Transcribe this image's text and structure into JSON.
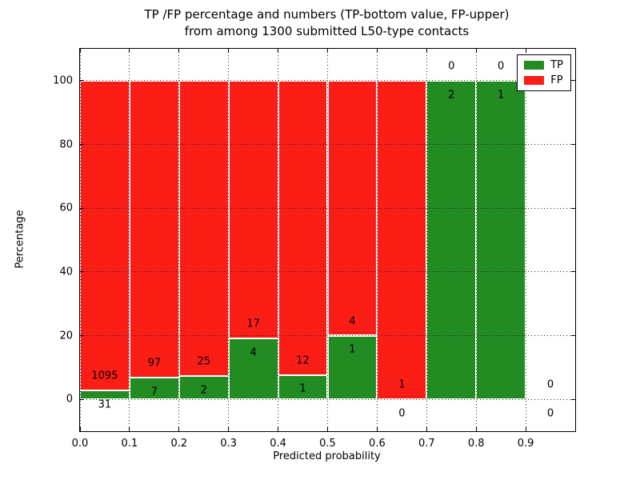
{
  "figure": {
    "title_line1": "TP /FP percentage and numbers (TP-bottom value, FP-upper)",
    "title_line2": "from among 1300 submitted L50-type contacts",
    "xlabel": "Predicted probability",
    "ylabel": "Percentage"
  },
  "legend": {
    "items": [
      {
        "label": "TP",
        "color": "#228b22"
      },
      {
        "label": "FP",
        "color": "#fb1e17"
      }
    ]
  },
  "chart_data": {
    "type": "bar",
    "stacked": true,
    "title": "TP /FP percentage and numbers (TP-bottom value, FP-upper) from among 1300 submitted L50-type contacts",
    "xlabel": "Predicted probability",
    "ylabel": "Percentage",
    "xlim": [
      0.0,
      1.0
    ],
    "ylim": [
      -10,
      110
    ],
    "xtick_values": [
      0.0,
      0.1,
      0.2,
      0.3,
      0.4,
      0.5,
      0.6,
      0.7,
      0.8,
      0.9
    ],
    "xtick_labels": [
      "0.0",
      "0.1",
      "0.2",
      "0.3",
      "0.4",
      "0.5",
      "0.6",
      "0.7",
      "0.8",
      "0.9"
    ],
    "ytick_values": [
      0,
      20,
      40,
      60,
      80,
      100
    ],
    "ytick_labels": [
      "0",
      "20",
      "40",
      "60",
      "80",
      "100"
    ],
    "grid": true,
    "grid_style": "dotted",
    "legend_position": "upper right",
    "colors": {
      "tp": "#228b22",
      "fp": "#fb1e17",
      "bar_edge": "#ffffff"
    },
    "total_contacts": 1300,
    "label_offset_pct": 4.5,
    "bins": [
      {
        "x_start": 0.0,
        "x_end": 0.1,
        "tp_count": 31,
        "fp_count": 1095,
        "tp_pct": 2.75,
        "fp_pct": 97.25
      },
      {
        "x_start": 0.1,
        "x_end": 0.2,
        "tp_count": 7,
        "fp_count": 97,
        "tp_pct": 6.73,
        "fp_pct": 93.27
      },
      {
        "x_start": 0.2,
        "x_end": 0.3,
        "tp_count": 2,
        "fp_count": 25,
        "tp_pct": 7.41,
        "fp_pct": 92.59
      },
      {
        "x_start": 0.3,
        "x_end": 0.4,
        "tp_count": 4,
        "fp_count": 17,
        "tp_pct": 19.05,
        "fp_pct": 80.95
      },
      {
        "x_start": 0.4,
        "x_end": 0.5,
        "tp_count": 1,
        "fp_count": 12,
        "tp_pct": 7.69,
        "fp_pct": 92.31
      },
      {
        "x_start": 0.5,
        "x_end": 0.6,
        "tp_count": 1,
        "fp_count": 4,
        "tp_pct": 20.0,
        "fp_pct": 80.0
      },
      {
        "x_start": 0.6,
        "x_end": 0.7,
        "tp_count": 0,
        "fp_count": 1,
        "tp_pct": 0.0,
        "fp_pct": 100.0
      },
      {
        "x_start": 0.7,
        "x_end": 0.8,
        "tp_count": 2,
        "fp_count": 0,
        "tp_pct": 100.0,
        "fp_pct": 0.0
      },
      {
        "x_start": 0.8,
        "x_end": 0.9,
        "tp_count": 1,
        "fp_count": 0,
        "tp_pct": 100.0,
        "fp_pct": 0.0
      },
      {
        "x_start": 0.9,
        "x_end": 1.0,
        "tp_count": 0,
        "fp_count": 0,
        "tp_pct": null,
        "fp_pct": null
      }
    ]
  }
}
